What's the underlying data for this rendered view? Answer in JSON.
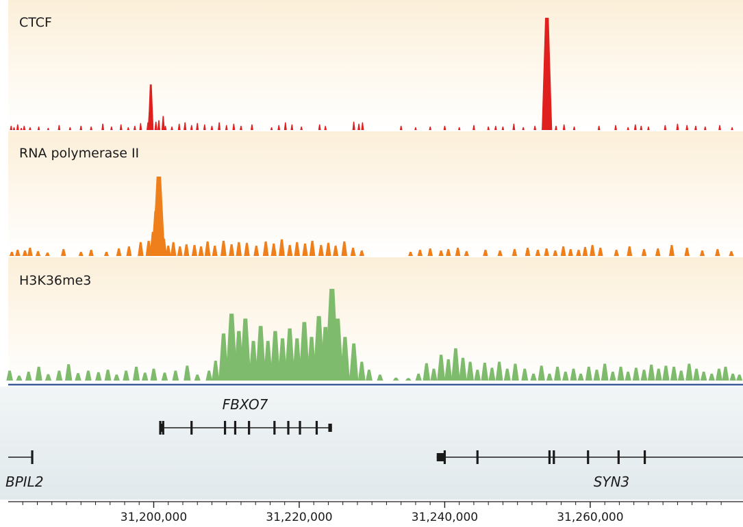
{
  "chart_data": {
    "type": "area",
    "x_range": [
      31180000,
      31281000
    ],
    "x_ticks": [
      {
        "value": 31200000,
        "label": "31,200,000"
      },
      {
        "value": 31220000,
        "label": "31,220,000"
      },
      {
        "value": 31240000,
        "label": "31,240,000"
      },
      {
        "value": 31260000,
        "label": "31,260,000"
      }
    ],
    "minor_tick_step": 2000,
    "tracks": [
      {
        "name": "CTCF",
        "color": "#e0201e",
        "x": [
          31180400,
          31180800,
          31181300,
          31181800,
          31182200,
          31183000,
          31184200,
          31185500,
          31187000,
          31188500,
          31190000,
          31191400,
          31193000,
          31194200,
          31195500,
          31196500,
          31197400,
          31198200,
          31199200,
          31199400,
          31199600,
          31200300,
          31200700,
          31201300,
          31201600,
          31202500,
          31203500,
          31204300,
          31205200,
          31206000,
          31207000,
          31208000,
          31209000,
          31210000,
          31211000,
          31212000,
          31213500,
          31216200,
          31217200,
          31218100,
          31219000,
          31220300,
          31222800,
          31223600,
          31227500,
          31228200,
          31228700,
          31234000,
          31236000,
          31238000,
          31240000,
          31242000,
          31244000,
          31246000,
          31247000,
          31248000,
          31249500,
          31250800,
          31252400,
          31253500,
          31253900,
          31254050,
          31254200,
          31254500,
          31255300,
          31256400,
          31257800,
          31261200,
          31263500,
          31265200,
          31266200,
          31267000,
          31268000,
          31270300,
          31272000,
          31273300,
          31274500,
          31275800,
          31277800,
          31279500
        ],
        "values": [
          6,
          4,
          8,
          3,
          6,
          4,
          5,
          3,
          7,
          4,
          6,
          5,
          9,
          5,
          8,
          4,
          6,
          10,
          11,
          25,
          65,
          12,
          14,
          20,
          6,
          5,
          9,
          11,
          7,
          10,
          8,
          6,
          11,
          7,
          9,
          6,
          8,
          4,
          7,
          11,
          8,
          5,
          8,
          6,
          12,
          9,
          11,
          6,
          4,
          5,
          6,
          4,
          7,
          5,
          6,
          5,
          9,
          4,
          6,
          7,
          30,
          160,
          45,
          9,
          6,
          8,
          5,
          6,
          7,
          4,
          8,
          6,
          5,
          7,
          9,
          7,
          6,
          5,
          7,
          4
        ]
      },
      {
        "name": "RNA polymerase II",
        "color": "#ef7f1b",
        "x": [
          31180500,
          31181300,
          31182300,
          31183000,
          31184100,
          31185400,
          31187600,
          31190000,
          31191400,
          31193500,
          31195200,
          31196600,
          31198200,
          31199300,
          31199900,
          31200300,
          31200700,
          31201000,
          31201400,
          31202000,
          31202700,
          31203600,
          31204500,
          31205600,
          31206500,
          31207400,
          31208400,
          31209600,
          31210700,
          31211700,
          31212800,
          31214100,
          31215400,
          31216500,
          31217600,
          31218700,
          31219700,
          31220800,
          31221800,
          31223000,
          31224000,
          31225000,
          31226200,
          31227400,
          31228600,
          31235300,
          31236600,
          31238000,
          31239500,
          31240500,
          31241800,
          31243000,
          31245600,
          31247600,
          31249600,
          31251400,
          31252800,
          31254000,
          31255200,
          31256300,
          31257300,
          31258400,
          31259300,
          31260300,
          31261400,
          31263600,
          31265400,
          31267400,
          31269300,
          31271200,
          31273300,
          31275400,
          31277500,
          31279400
        ],
        "values": [
          6,
          9,
          8,
          12,
          7,
          5,
          10,
          6,
          9,
          6,
          11,
          14,
          20,
          22,
          35,
          65,
          115,
          60,
          25,
          15,
          20,
          14,
          17,
          16,
          14,
          21,
          15,
          22,
          17,
          20,
          19,
          15,
          21,
          18,
          24,
          16,
          20,
          18,
          22,
          16,
          19,
          15,
          21,
          12,
          8,
          6,
          9,
          11,
          8,
          10,
          12,
          7,
          9,
          8,
          10,
          12,
          9,
          11,
          8,
          14,
          10,
          9,
          13,
          16,
          12,
          9,
          14,
          10,
          11,
          16,
          12,
          8,
          10,
          7
        ]
      },
      {
        "name": "H3K36me3",
        "color": "#7fbb6c",
        "x": [
          31180200,
          31181500,
          31182800,
          31184200,
          31185500,
          31187000,
          31188300,
          31189600,
          31191000,
          31192400,
          31193700,
          31194900,
          31196200,
          31197600,
          31198800,
          31200000,
          31201500,
          31203000,
          31204600,
          31206000,
          31207600,
          31208500,
          31209600,
          31210700,
          31211700,
          31212600,
          31213700,
          31214700,
          31215700,
          31216700,
          31217700,
          31218700,
          31219700,
          31220700,
          31221700,
          31222700,
          31223600,
          31224500,
          31225300,
          31226300,
          31227500,
          31228600,
          31229600,
          31231100,
          31233300,
          31235000,
          31236400,
          31237500,
          31238500,
          31239500,
          31240500,
          31241500,
          31242500,
          31243500,
          31244500,
          31245500,
          31246500,
          31247500,
          31248600,
          31249700,
          31251000,
          31252200,
          31253300,
          31254400,
          31255500,
          31256600,
          31257700,
          31258700,
          31259800,
          31260900,
          31262000,
          31263100,
          31264200,
          31265200,
          31266300,
          31267400,
          31268400,
          31269400,
          31270400,
          31271500,
          31272500,
          31273600,
          31274600,
          31275600,
          31276700,
          31277700,
          31278600,
          31279600,
          31280500
        ],
        "values": [
          20,
          10,
          18,
          28,
          13,
          20,
          33,
          15,
          20,
          17,
          22,
          12,
          20,
          28,
          16,
          24,
          16,
          20,
          30,
          12,
          20,
          40,
          95,
          135,
          100,
          125,
          80,
          110,
          80,
          100,
          85,
          105,
          85,
          118,
          88,
          130,
          108,
          185,
          125,
          88,
          75,
          38,
          22,
          12,
          6,
          5,
          14,
          35,
          24,
          52,
          43,
          65,
          46,
          38,
          22,
          36,
          26,
          38,
          24,
          34,
          24,
          14,
          30,
          14,
          28,
          18,
          24,
          14,
          28,
          22,
          34,
          18,
          28,
          18,
          26,
          22,
          32,
          24,
          30,
          28,
          20,
          34,
          24,
          18,
          14,
          24,
          28,
          14,
          12
        ]
      }
    ],
    "genes": [
      {
        "name": "FBXO7",
        "start": 31200800,
        "end": 31224500,
        "utr5": [
          31200800,
          31201400
        ],
        "utr3": [
          31224000,
          31224500
        ],
        "exons": [
          31200900,
          31201300,
          31205200,
          31209800,
          31211200,
          31213100,
          31216600,
          31218500,
          31220100,
          31222400
        ]
      },
      {
        "name": "BPIL2",
        "label": "BPIL2",
        "start": 31180000,
        "end": 31183400,
        "exons": [
          31183300
        ]
      },
      {
        "name": "SYN3",
        "start": 31238900,
        "end": 31281000,
        "utr5": [
          31238900,
          31239900
        ],
        "exons": [
          31240000,
          31244500,
          31254400,
          31255000,
          31259700,
          31263900,
          31267500
        ]
      }
    ],
    "colors": {
      "track_bg_top": "#fcefd9",
      "track_bg_bottom": "#ffffff",
      "gene_bg": "#e6eef0",
      "axis_line": "#3a5a9a",
      "gene_line": "#1a1a1a"
    }
  }
}
